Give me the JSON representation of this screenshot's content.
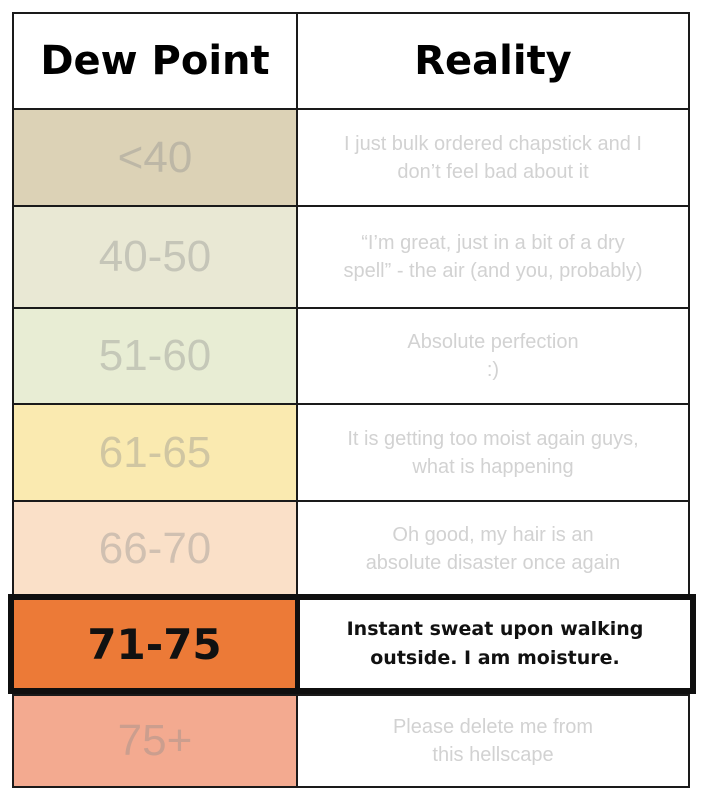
{
  "header": {
    "col1": "Dew Point",
    "col2": "Reality"
  },
  "rows": [
    {
      "range": "<40",
      "reality": "I just bulk ordered chapstick and I\ndon’t feel bad about it",
      "color": "#dcd2b6"
    },
    {
      "range": "40-50",
      "reality": "“I’m great, just in a bit of a dry\nspell” - the air (and you, probably)",
      "color": "#e9e8d4"
    },
    {
      "range": "51-60",
      "reality": "Absolute perfection\n:)",
      "color": "#e8edd4"
    },
    {
      "range": "61-65",
      "reality": "It is getting too moist again guys,\nwhat is happening",
      "color": "#faeab0"
    },
    {
      "range": "66-70",
      "reality": "Oh good, my hair is an\nabsolute disaster once again",
      "color": "#fae0c8"
    },
    {
      "range": "71-75",
      "reality": "Instant sweat upon walking\noutside. I am moisture.",
      "color": "#ec7a37"
    },
    {
      "range": "75+",
      "reality": "Please delete me from\nthis hellscape",
      "color": "#f3aa90"
    }
  ]
}
